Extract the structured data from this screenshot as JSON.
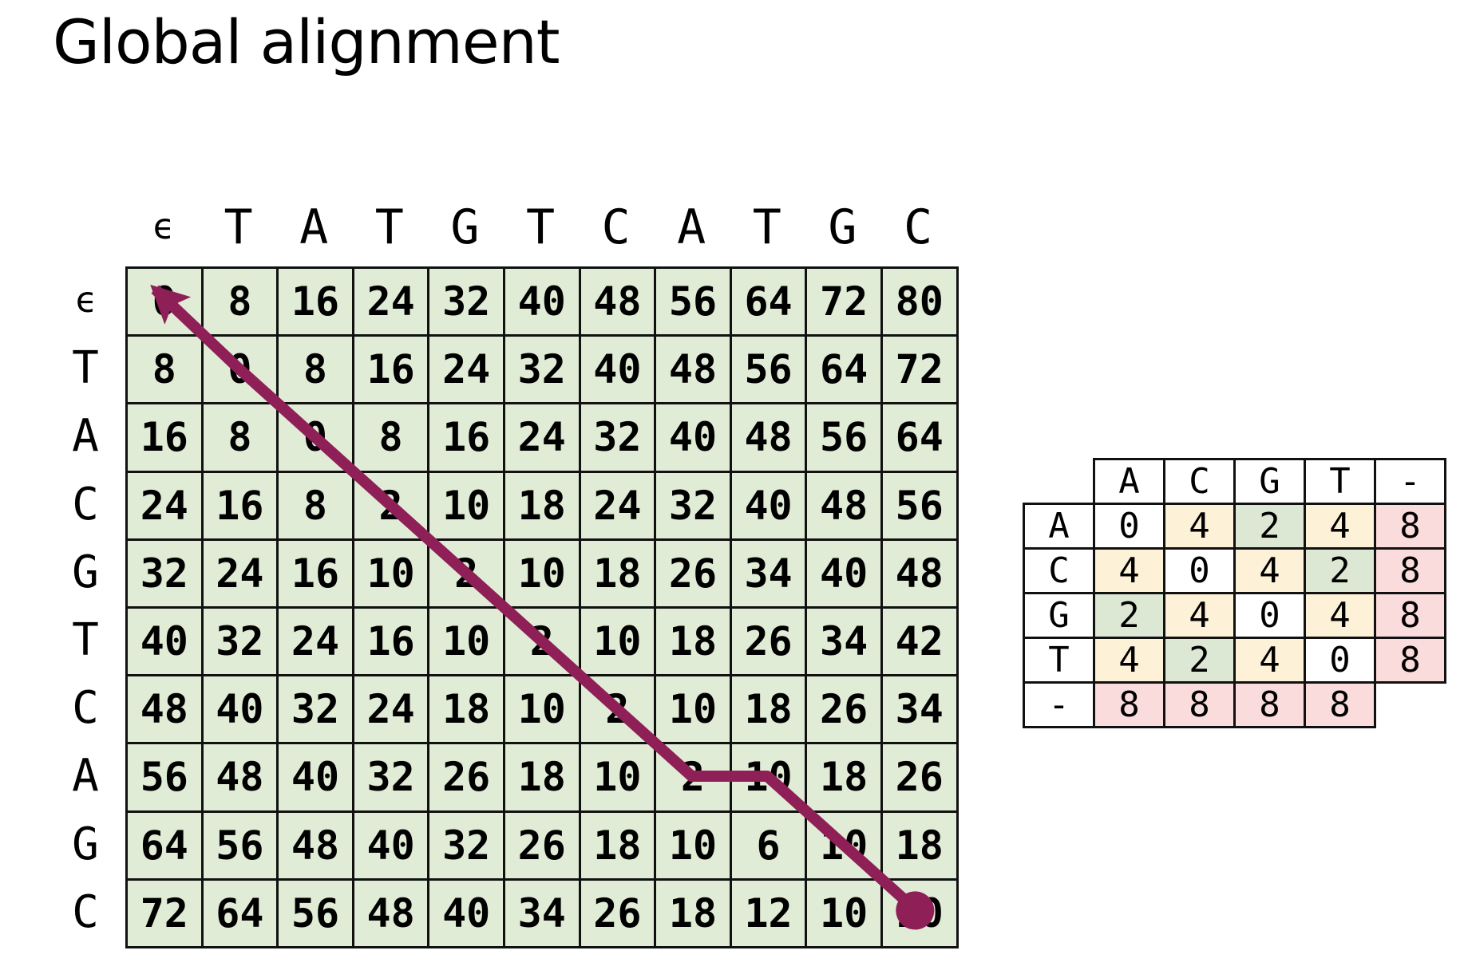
{
  "title": "Global alignment",
  "colors": {
    "cell_fill": "#e0ecd6",
    "path": "#8e1f57",
    "score_zero": "#ffffff",
    "score_two": "#dde8d4",
    "score_four": "#fdf1d8",
    "score_gap": "#fbdcdc"
  },
  "dp_matrix": {
    "column_labels": [
      "ϵ",
      "T",
      "A",
      "T",
      "G",
      "T",
      "C",
      "A",
      "T",
      "G",
      "C"
    ],
    "row_labels": [
      "ϵ",
      "T",
      "A",
      "C",
      "G",
      "T",
      "C",
      "A",
      "G",
      "C"
    ],
    "cells": [
      [
        "0",
        "8",
        "16",
        "24",
        "32",
        "40",
        "48",
        "56",
        "64",
        "72",
        "80"
      ],
      [
        "8",
        "0",
        "8",
        "16",
        "24",
        "32",
        "40",
        "48",
        "56",
        "64",
        "72"
      ],
      [
        "16",
        "8",
        "0",
        "8",
        "16",
        "24",
        "32",
        "40",
        "48",
        "56",
        "64"
      ],
      [
        "24",
        "16",
        "8",
        "2",
        "10",
        "18",
        "24",
        "32",
        "40",
        "48",
        "56"
      ],
      [
        "32",
        "24",
        "16",
        "10",
        "2",
        "10",
        "18",
        "26",
        "34",
        "40",
        "48"
      ],
      [
        "40",
        "32",
        "24",
        "16",
        "10",
        "2",
        "10",
        "18",
        "26",
        "34",
        "42"
      ],
      [
        "48",
        "40",
        "32",
        "24",
        "18",
        "10",
        "2",
        "10",
        "18",
        "26",
        "34"
      ],
      [
        "56",
        "48",
        "40",
        "32",
        "26",
        "18",
        "10",
        "2",
        "10",
        "18",
        "26"
      ],
      [
        "64",
        "56",
        "48",
        "40",
        "32",
        "26",
        "18",
        "10",
        "6",
        "10",
        "18"
      ],
      [
        "72",
        "64",
        "56",
        "48",
        "40",
        "34",
        "26",
        "18",
        "12",
        "10",
        "10"
      ]
    ],
    "traceback_path": [
      [
        9,
        10
      ],
      [
        8,
        9
      ],
      [
        7,
        8
      ],
      [
        7,
        7
      ],
      [
        6,
        6
      ],
      [
        5,
        5
      ],
      [
        4,
        4
      ],
      [
        3,
        3
      ],
      [
        2,
        2
      ],
      [
        1,
        1
      ],
      [
        0,
        0
      ]
    ]
  },
  "cost_matrix": {
    "column_labels": [
      "A",
      "C",
      "G",
      "T",
      "-"
    ],
    "row_labels": [
      "A",
      "C",
      "G",
      "T",
      "-"
    ],
    "cells": [
      [
        "0",
        "4",
        "2",
        "4",
        "8"
      ],
      [
        "4",
        "0",
        "4",
        "2",
        "8"
      ],
      [
        "2",
        "4",
        "0",
        "4",
        "8"
      ],
      [
        "4",
        "2",
        "4",
        "0",
        "8"
      ],
      [
        "8",
        "8",
        "8",
        "8",
        ""
      ]
    ]
  }
}
